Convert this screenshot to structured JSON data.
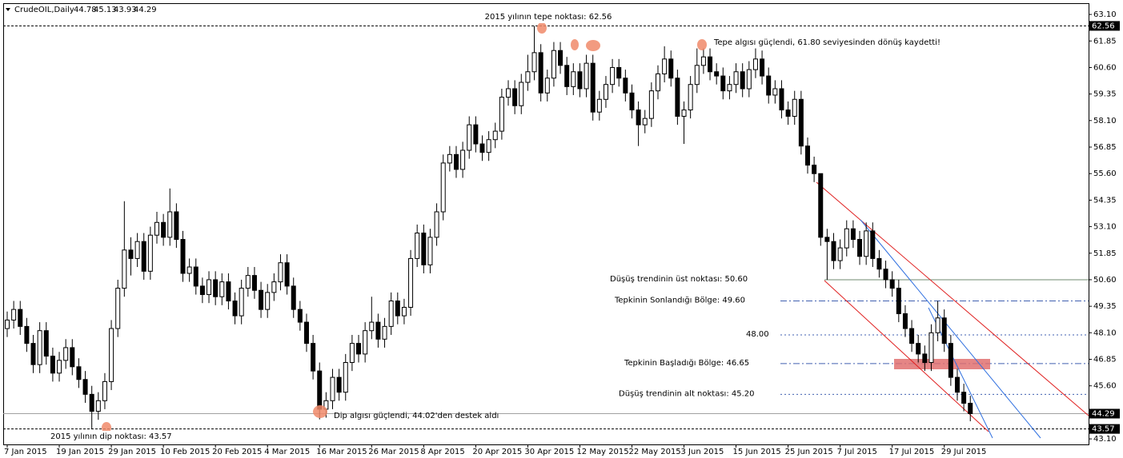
{
  "chart_data": {
    "type": "candlestick",
    "title": "CrudeOIL,Daily",
    "categories": [
      "7 Jan 2015",
      null,
      null,
      null,
      null,
      null,
      null,
      null,
      "19 Jan 2015",
      null,
      null,
      null,
      null,
      null,
      null,
      null,
      "29 Jan 2015",
      null,
      null,
      null,
      null,
      null,
      null,
      null,
      "10 Feb 2015",
      null,
      null,
      null,
      null,
      null,
      null,
      null,
      "20 Feb 2015",
      null,
      null,
      null,
      null,
      null,
      null,
      null,
      "4 Mar 2015",
      null,
      null,
      null,
      null,
      null,
      null,
      null,
      "16 Mar 2015",
      null,
      null,
      null,
      null,
      null,
      null,
      null,
      "26 Mar 2015",
      null,
      null,
      null,
      null,
      null,
      null,
      null,
      "8 Apr 2015",
      null,
      null,
      null,
      null,
      null,
      null,
      null,
      "20 Apr 2015",
      null,
      null,
      null,
      null,
      null,
      null,
      null,
      "30 Apr 2015",
      null,
      null,
      null,
      null,
      null,
      null,
      null,
      "12 May 2015",
      null,
      null,
      null,
      null,
      null,
      null,
      null,
      "22 May 2015",
      null,
      null,
      null,
      null,
      null,
      null,
      null,
      "3 Jun 2015",
      null,
      null,
      null,
      null,
      null,
      null,
      null,
      "15 Jun 2015",
      null,
      null,
      null,
      null,
      null,
      null,
      null,
      "25 Jun 2015",
      null,
      null,
      null,
      null,
      null,
      null,
      null,
      "7 Jul 2015",
      null,
      null,
      null,
      null,
      null,
      null,
      null,
      "17 Jul 2015",
      null,
      null,
      null,
      null,
      null,
      null,
      null,
      "29 Jul 2015",
      null,
      null,
      null,
      null
    ],
    "open": [
      48.3,
      48.7,
      49.2,
      48.4,
      47.6,
      46.6,
      48.2,
      47.0,
      46.2,
      46.8,
      47.4,
      46.5,
      45.9,
      45.2,
      44.4,
      44.9,
      45.8,
      48.3,
      50.2,
      52.0,
      51.6,
      52.4,
      51.0,
      52.7,
      53.3,
      52.6,
      53.8,
      52.5,
      50.9,
      51.2,
      50.3,
      49.9,
      50.6,
      49.8,
      50.5,
      49.6,
      48.9,
      50.2,
      50.8,
      50.1,
      49.2,
      50.0,
      50.5,
      51.4,
      50.3,
      49.2,
      48.6,
      47.6,
      46.3,
      44.5,
      44.9,
      46.0,
      45.3,
      46.7,
      47.6,
      47.1,
      48.2,
      48.6,
      47.8,
      48.4,
      49.6,
      48.9,
      49.3,
      51.6,
      52.8,
      51.3,
      52.6,
      53.8,
      56.1,
      56.5,
      55.8,
      56.7,
      57.9,
      57.0,
      56.6,
      57.2,
      57.6,
      59.2,
      59.6,
      58.8,
      59.9,
      60.4,
      61.3,
      59.4,
      60.1,
      61.4,
      60.7,
      59.7,
      60.4,
      59.6,
      60.8,
      58.5,
      59.1,
      59.8,
      60.6,
      60.1,
      59.4,
      58.6,
      57.9,
      58.2,
      59.5,
      60.3,
      61.0,
      60.1,
      58.3,
      58.6,
      59.8,
      60.7,
      61.1,
      60.4,
      60.2,
      59.5,
      59.8,
      60.4,
      59.6,
      60.5,
      61.0,
      60.2,
      59.3,
      59.6,
      58.6,
      58.3,
      59.1,
      56.9,
      56.0,
      55.6,
      52.6,
      52.4,
      51.5,
      52.1,
      53.0,
      52.5,
      51.7,
      52.9,
      51.6,
      51.1,
      50.6,
      50.2,
      49.0,
      48.3,
      47.6,
      47.1,
      46.7,
      48.1,
      48.8,
      47.6,
      46.0,
      45.3,
      44.78
    ],
    "high": [
      49.1,
      49.6,
      49.6,
      48.8,
      48.0,
      48.6,
      48.6,
      47.4,
      47.2,
      47.8,
      47.8,
      46.9,
      46.3,
      45.6,
      45.3,
      46.2,
      48.7,
      50.6,
      54.3,
      52.6,
      52.8,
      52.8,
      53.1,
      53.8,
      53.7,
      54.9,
      54.2,
      52.9,
      51.6,
      51.6,
      50.7,
      51.0,
      51.0,
      50.9,
      50.9,
      50.0,
      50.6,
      51.2,
      51.2,
      50.5,
      50.4,
      50.9,
      51.8,
      51.8,
      50.7,
      49.6,
      49.0,
      48.0,
      46.7,
      45.3,
      46.4,
      46.4,
      47.1,
      48.0,
      48.0,
      48.6,
      49.8,
      49.0,
      48.8,
      50.0,
      50.0,
      49.7,
      52.0,
      53.2,
      53.2,
      53.0,
      54.2,
      56.5,
      56.9,
      56.9,
      57.1,
      58.3,
      58.3,
      57.4,
      57.6,
      58.0,
      59.6,
      60.0,
      60.0,
      60.3,
      61.2,
      62.56,
      61.7,
      60.5,
      61.8,
      61.8,
      61.1,
      60.8,
      60.8,
      61.2,
      61.2,
      59.5,
      60.2,
      61.0,
      61.0,
      60.5,
      59.8,
      59.0,
      58.6,
      59.9,
      60.7,
      61.6,
      61.4,
      60.5,
      59.0,
      60.2,
      61.5,
      61.5,
      61.5,
      60.8,
      60.6,
      60.2,
      60.8,
      60.8,
      60.9,
      61.5,
      61.4,
      60.6,
      60.0,
      60.0,
      59.0,
      59.5,
      59.5,
      57.3,
      56.4,
      55.6,
      53.0,
      52.8,
      52.5,
      53.4,
      53.4,
      52.9,
      53.3,
      53.3,
      52.0,
      51.5,
      51.0,
      50.6,
      49.4,
      48.7,
      48.0,
      47.5,
      48.5,
      49.6,
      49.2,
      48.0,
      46.4,
      45.7,
      45.13
    ],
    "low": [
      47.9,
      48.3,
      48.0,
      47.2,
      46.2,
      46.2,
      46.6,
      45.8,
      45.8,
      46.4,
      46.1,
      45.5,
      44.8,
      43.57,
      44.0,
      44.5,
      45.4,
      47.9,
      49.8,
      50.8,
      51.2,
      50.6,
      50.6,
      52.3,
      52.2,
      52.2,
      52.1,
      50.5,
      50.5,
      49.9,
      49.5,
      49.5,
      49.4,
      49.4,
      49.2,
      48.5,
      48.5,
      49.8,
      49.7,
      48.8,
      48.8,
      49.6,
      50.1,
      49.9,
      48.8,
      48.2,
      47.2,
      45.9,
      44.02,
      44.1,
      44.5,
      44.9,
      44.9,
      46.3,
      46.7,
      46.7,
      47.8,
      47.4,
      47.4,
      48.0,
      48.5,
      48.5,
      48.9,
      51.2,
      50.9,
      50.9,
      52.2,
      53.4,
      55.7,
      55.4,
      55.4,
      56.3,
      56.6,
      56.2,
      56.2,
      56.8,
      57.2,
      58.8,
      58.4,
      58.4,
      59.5,
      60.0,
      59.0,
      59.0,
      59.7,
      60.3,
      59.3,
      59.3,
      59.2,
      59.2,
      58.1,
      58.1,
      58.7,
      59.4,
      59.7,
      59.0,
      58.2,
      56.9,
      57.5,
      57.8,
      59.1,
      59.9,
      59.7,
      57.9,
      57.0,
      58.2,
      59.4,
      60.3,
      60.0,
      59.8,
      59.1,
      59.1,
      59.4,
      59.2,
      59.2,
      60.1,
      59.8,
      58.9,
      58.9,
      58.2,
      57.9,
      57.9,
      56.5,
      55.6,
      55.2,
      52.2,
      50.6,
      51.1,
      51.1,
      51.7,
      52.1,
      51.3,
      51.3,
      51.2,
      50.7,
      50.2,
      49.8,
      48.6,
      47.9,
      47.2,
      46.7,
      46.3,
      46.3,
      47.7,
      47.2,
      45.6,
      44.9,
      44.4,
      43.93
    ],
    "close": [
      48.7,
      49.2,
      48.4,
      47.6,
      46.6,
      48.2,
      47.0,
      46.2,
      46.8,
      47.4,
      46.5,
      45.9,
      45.2,
      44.4,
      44.9,
      45.8,
      48.3,
      50.2,
      52.0,
      51.6,
      52.4,
      51.0,
      52.7,
      53.3,
      52.6,
      53.8,
      52.5,
      50.9,
      51.2,
      50.3,
      49.9,
      50.6,
      49.8,
      50.5,
      49.6,
      48.9,
      50.2,
      50.8,
      50.1,
      49.2,
      50.0,
      50.5,
      51.4,
      50.3,
      49.2,
      48.6,
      47.6,
      46.3,
      44.5,
      44.9,
      46.0,
      45.3,
      46.7,
      47.6,
      47.1,
      48.2,
      48.6,
      47.8,
      48.4,
      49.6,
      48.9,
      49.3,
      51.6,
      52.8,
      51.3,
      52.6,
      53.8,
      56.1,
      56.5,
      55.8,
      56.7,
      57.9,
      57.0,
      56.6,
      57.2,
      57.6,
      59.2,
      59.6,
      58.8,
      59.9,
      60.4,
      61.3,
      59.4,
      60.1,
      61.4,
      60.7,
      59.7,
      60.4,
      59.6,
      60.8,
      58.5,
      59.1,
      59.8,
      60.6,
      60.1,
      59.4,
      58.6,
      57.9,
      58.2,
      59.5,
      60.3,
      61.0,
      60.1,
      58.3,
      58.6,
      59.8,
      60.7,
      61.1,
      60.4,
      60.2,
      59.5,
      59.8,
      60.4,
      59.6,
      60.5,
      61.0,
      60.2,
      59.3,
      59.6,
      58.6,
      58.3,
      59.1,
      56.9,
      56.0,
      55.6,
      52.6,
      52.4,
      51.5,
      52.1,
      53.0,
      52.5,
      51.7,
      52.9,
      51.6,
      51.1,
      50.6,
      50.2,
      49.0,
      48.3,
      47.6,
      47.1,
      46.7,
      48.1,
      48.8,
      47.6,
      46.0,
      45.3,
      44.78,
      44.29
    ],
    "ylim": [
      42.84,
      63.63
    ],
    "yticks": [
      {
        "value": 63.1,
        "label": "63.10"
      },
      {
        "value": 61.85,
        "label": "61.85"
      },
      {
        "value": 60.6,
        "label": "60.60"
      },
      {
        "value": 59.35,
        "label": "59.35"
      },
      {
        "value": 58.1,
        "label": "58.10"
      },
      {
        "value": 56.85,
        "label": "56.85"
      },
      {
        "value": 55.6,
        "label": "55.60"
      },
      {
        "value": 54.35,
        "label": "54.35"
      },
      {
        "value": 53.1,
        "label": "53.10"
      },
      {
        "value": 51.85,
        "label": "51.85"
      },
      {
        "value": 50.6,
        "label": "50.60"
      },
      {
        "value": 49.35,
        "label": "49.35"
      },
      {
        "value": 48.1,
        "label": "48.10"
      },
      {
        "value": 46.85,
        "label": "46.85"
      },
      {
        "value": 45.6,
        "label": "45.60"
      },
      {
        "value": 43.1,
        "label": "43.10"
      }
    ],
    "levels": [
      {
        "value": 62.56,
        "color": "#000000",
        "dash": "dashed",
        "box": true
      },
      {
        "value": 43.57,
        "color": "#000000",
        "dash": "dashed",
        "box": true
      },
      {
        "value": 44.29,
        "color": "#a0a0a0",
        "dash": "solid",
        "box": true
      },
      {
        "value": 50.6,
        "color": "#6f8a6f",
        "dash": "solid",
        "text": "Düşüş trendinin üst noktası: 50.60"
      },
      {
        "value": 49.6,
        "color": "#4060b0",
        "dash": "dashdot",
        "text": "Tepkinin Sonlandığı Bölge: 49.60"
      },
      {
        "value": 48,
        "color": "#4060b0",
        "dash": "dotted",
        "text": "48.00"
      },
      {
        "value": 46.65,
        "color": "#4060b0",
        "dash": "dashdot",
        "text": "Tepkinin Başladığı Bölge: 46.65"
      },
      {
        "value": 45.2,
        "color": "#4060b0",
        "dash": "dotted",
        "text": "Düşüş trendinin alt noktası: 45.20"
      }
    ],
    "annotations": [
      "2015 yılının tepe noktası: 62.56",
      "Tepe algısı güçlendi, 61.80 seviyesinden dönüş kaydetti!",
      "Dip algısı güçlendi, 44.02'den destek aldı",
      "2015 yılının dip noktası: 43.57"
    ]
  }
}
